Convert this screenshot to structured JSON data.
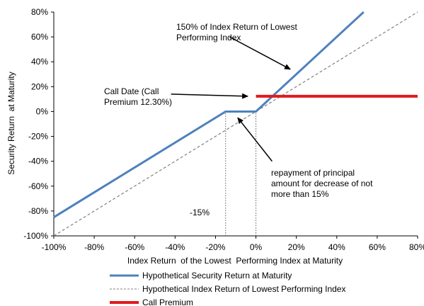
{
  "chart_data": {
    "type": "line",
    "xlabel": "Index Return  of the Lowest  Performing Index at Maturity",
    "ylabel": "Security Return  at Maturity",
    "xlim": [
      -100,
      80
    ],
    "ylim": [
      -100,
      80
    ],
    "x_ticks": [
      -100,
      -80,
      -60,
      -40,
      -20,
      0,
      20,
      40,
      60,
      80
    ],
    "y_ticks": [
      -100,
      -80,
      -60,
      -40,
      -20,
      0,
      20,
      40,
      60,
      80
    ],
    "x_tick_labels": [
      "-100%",
      "-80%",
      "-60%",
      "-40%",
      "-20%",
      "0%",
      "20%",
      "40%",
      "60%",
      "80%"
    ],
    "y_tick_labels": [
      "-100%",
      "-80%",
      "-60%",
      "-40%",
      "-20%",
      "0%",
      "20%",
      "40%",
      "60%",
      "80%"
    ],
    "grid": false,
    "legend_position": "bottom",
    "series": [
      {
        "name": "Hypothetical Security Return at Maturity",
        "color": "#4f81bd",
        "style": "solid",
        "x": [
          -100,
          -15,
          0,
          53.3
        ],
        "y": [
          -85,
          0,
          0,
          80
        ]
      },
      {
        "name": "Hypothetical Index Return of Lowest Performing Index",
        "color": "#808080",
        "style": "dashed",
        "x": [
          -100,
          80
        ],
        "y": [
          -100,
          80
        ]
      },
      {
        "name": "Call Premium",
        "color": "#e31a1c",
        "style": "solid",
        "x": [
          0,
          80
        ],
        "y": [
          12.3,
          12.3
        ]
      }
    ],
    "reference_lines": [
      {
        "x": -15,
        "y_from": -100,
        "y_to": 0
      },
      {
        "x": 0,
        "y_from": -100,
        "y_to": 0
      }
    ],
    "annotations": {
      "leveraged": [
        "150% of Index Return  of Lowest",
        "Performing Index"
      ],
      "call_date": [
        "Call Date (Call",
        "Premium 12.30%)"
      ],
      "repayment": [
        "repayment of principal",
        "amount for decrease of not",
        "more than 15%"
      ],
      "buffer": "-15%"
    },
    "annotation_arrows": [
      {
        "from": [
          -13,
          60
        ],
        "to": [
          17,
          34
        ]
      },
      {
        "from": [
          -42,
          14
        ],
        "to": [
          -4,
          12.3
        ]
      },
      {
        "from": [
          8,
          -40
        ],
        "to": [
          -9,
          -5
        ]
      }
    ]
  }
}
